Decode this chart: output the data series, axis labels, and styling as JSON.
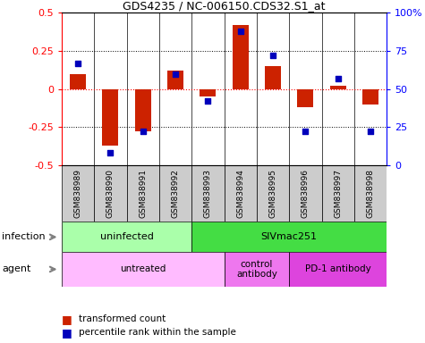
{
  "title": "GDS4235 / NC-006150.CDS32.S1_at",
  "samples": [
    "GSM838989",
    "GSM838990",
    "GSM838991",
    "GSM838992",
    "GSM838993",
    "GSM838994",
    "GSM838995",
    "GSM838996",
    "GSM838997",
    "GSM838998"
  ],
  "transformed_count": [
    0.1,
    -0.37,
    -0.28,
    0.12,
    -0.05,
    0.42,
    0.15,
    -0.12,
    0.02,
    -0.1
  ],
  "percentile_rank": [
    0.67,
    0.08,
    0.22,
    0.6,
    0.42,
    0.88,
    0.72,
    0.22,
    0.57,
    0.22
  ],
  "ylim": [
    -0.5,
    0.5
  ],
  "yticks": [
    -0.5,
    -0.25,
    0.0,
    0.25,
    0.5
  ],
  "bar_color": "#cc2200",
  "dot_color": "#0000bb",
  "infection_groups": [
    {
      "label": "uninfected",
      "start": 0,
      "end": 4,
      "color": "#aaffaa"
    },
    {
      "label": "SIVmac251",
      "start": 4,
      "end": 10,
      "color": "#44dd44"
    }
  ],
  "agent_groups": [
    {
      "label": "untreated",
      "start": 0,
      "end": 5,
      "color": "#ffbbff"
    },
    {
      "label": "control\nantibody",
      "start": 5,
      "end": 7,
      "color": "#ee77ee"
    },
    {
      "label": "PD-1 antibody",
      "start": 7,
      "end": 10,
      "color": "#dd44dd"
    }
  ],
  "legend_label_tc": "transformed count",
  "legend_label_pr": "percentile rank within the sample",
  "infection_label": "infection",
  "agent_label": "agent",
  "bg_color": "#ffffff"
}
